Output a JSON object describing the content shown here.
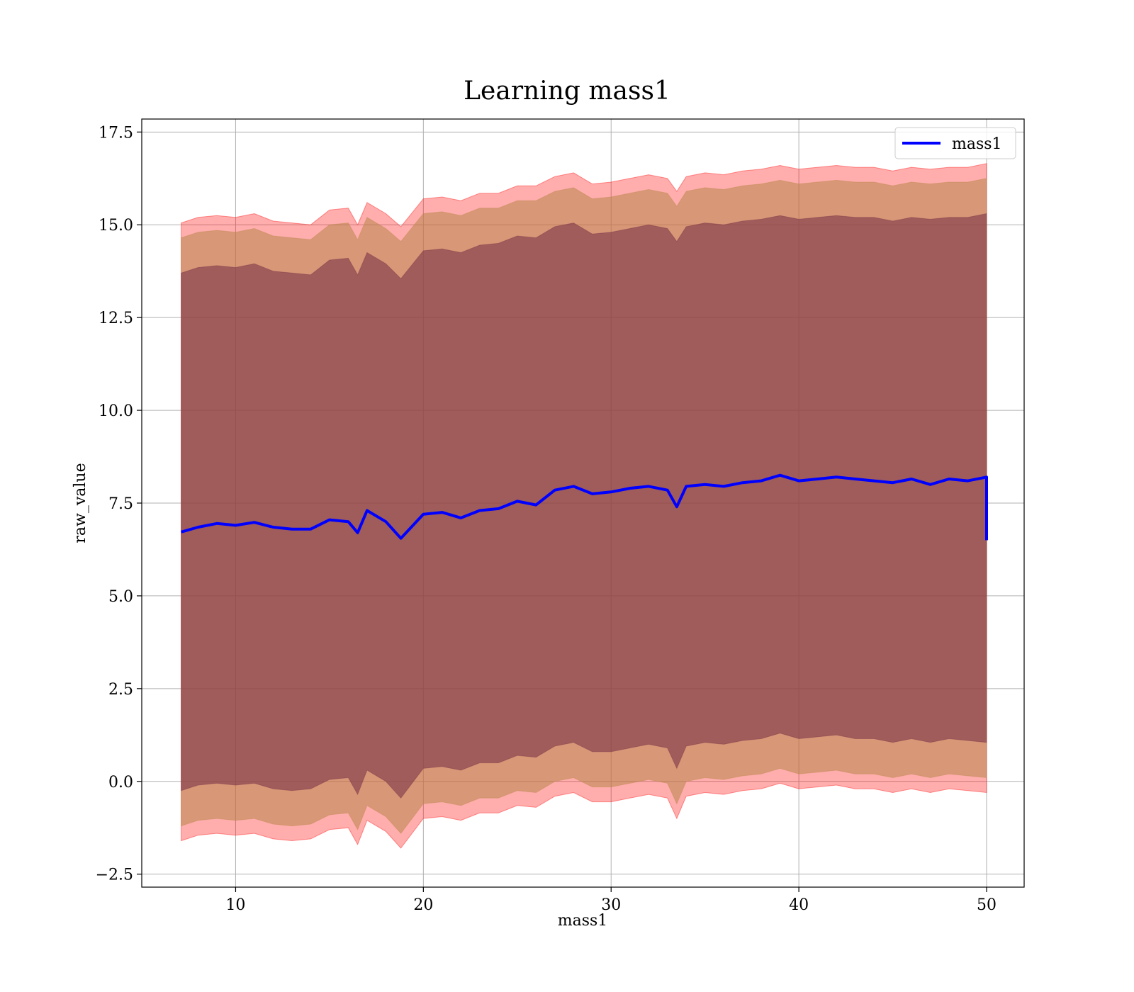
{
  "chart_data": {
    "type": "area",
    "title": "Learning mass1",
    "xlabel": "mass1",
    "ylabel": "raw_value",
    "xlim": [
      5,
      52
    ],
    "ylim": [
      -2.85,
      17.85
    ],
    "xticks": [
      10,
      20,
      30,
      40,
      50
    ],
    "xtick_labels": [
      "10",
      "20",
      "30",
      "40",
      "50"
    ],
    "yticks": [
      -2.5,
      0.0,
      2.5,
      5.0,
      7.5,
      10.0,
      12.5,
      15.0,
      17.5
    ],
    "ytick_labels": [
      "−2.5",
      "0.0",
      "2.5",
      "5.0",
      "7.5",
      "10.0",
      "12.5",
      "15.0",
      "17.5"
    ],
    "grid": true,
    "legend": {
      "position": "top-right",
      "entries": [
        "mass1"
      ]
    },
    "series": [
      {
        "name": "mass1",
        "color": "#0000ff",
        "x": [
          7.1,
          8,
          9,
          10,
          11,
          12,
          13,
          14,
          15,
          16,
          16.5,
          17,
          18,
          18.8,
          20,
          21,
          22,
          23,
          24,
          25,
          26,
          27,
          28,
          29,
          30,
          31,
          32,
          33,
          33.5,
          34,
          35,
          36,
          37,
          38,
          39,
          40,
          41,
          42,
          43,
          44,
          45,
          46,
          47,
          48,
          49,
          50,
          50
        ],
        "y": [
          6.72,
          6.85,
          6.95,
          6.9,
          6.98,
          6.85,
          6.8,
          6.8,
          7.05,
          7.0,
          6.7,
          7.3,
          7.0,
          6.55,
          7.2,
          7.25,
          7.1,
          7.3,
          7.35,
          7.55,
          7.45,
          7.85,
          7.95,
          7.75,
          7.8,
          7.9,
          7.95,
          7.85,
          7.4,
          7.95,
          8.0,
          7.95,
          8.05,
          8.1,
          8.25,
          8.1,
          8.15,
          8.2,
          8.15,
          8.1,
          8.05,
          8.15,
          8.0,
          8.15,
          8.1,
          8.2,
          6.5
        ]
      }
    ],
    "bands": [
      {
        "color": "#ff0000",
        "opacity": 0.32,
        "x": [
          7.1,
          8,
          9,
          10,
          11,
          12,
          13,
          14,
          15,
          16,
          16.5,
          17,
          18,
          18.8,
          20,
          21,
          22,
          23,
          24,
          25,
          26,
          27,
          28,
          29,
          30,
          31,
          32,
          33,
          33.5,
          34,
          35,
          36,
          37,
          38,
          39,
          40,
          41,
          42,
          43,
          44,
          45,
          46,
          47,
          48,
          49,
          50
        ],
        "upper": [
          15.05,
          15.2,
          15.25,
          15.2,
          15.3,
          15.1,
          15.05,
          15.0,
          15.4,
          15.45,
          15.0,
          15.6,
          15.3,
          14.95,
          15.7,
          15.75,
          15.65,
          15.85,
          15.85,
          16.05,
          16.05,
          16.3,
          16.4,
          16.1,
          16.15,
          16.25,
          16.35,
          16.25,
          15.9,
          16.3,
          16.4,
          16.35,
          16.45,
          16.5,
          16.6,
          16.5,
          16.55,
          16.6,
          16.55,
          16.55,
          16.45,
          16.55,
          16.5,
          16.55,
          16.55,
          16.65
        ],
        "lower": [
          -1.6,
          -1.45,
          -1.4,
          -1.45,
          -1.4,
          -1.55,
          -1.6,
          -1.55,
          -1.3,
          -1.25,
          -1.7,
          -1.05,
          -1.35,
          -1.8,
          -1.0,
          -0.95,
          -1.05,
          -0.85,
          -0.85,
          -0.65,
          -0.7,
          -0.4,
          -0.3,
          -0.55,
          -0.55,
          -0.45,
          -0.35,
          -0.45,
          -1.0,
          -0.4,
          -0.3,
          -0.35,
          -0.25,
          -0.2,
          -0.05,
          -0.2,
          -0.15,
          -0.1,
          -0.2,
          -0.2,
          -0.3,
          -0.2,
          -0.3,
          -0.2,
          -0.25,
          -0.3
        ]
      },
      {
        "color": "#b8864a",
        "opacity": 0.55,
        "x": [
          7.1,
          8,
          9,
          10,
          11,
          12,
          13,
          14,
          15,
          16,
          16.5,
          17,
          18,
          18.8,
          20,
          21,
          22,
          23,
          24,
          25,
          26,
          27,
          28,
          29,
          30,
          31,
          32,
          33,
          33.5,
          34,
          35,
          36,
          37,
          38,
          39,
          40,
          41,
          42,
          43,
          44,
          45,
          46,
          47,
          48,
          49,
          50
        ],
        "upper": [
          14.65,
          14.8,
          14.85,
          14.8,
          14.9,
          14.7,
          14.65,
          14.6,
          15.0,
          15.05,
          14.6,
          15.2,
          14.9,
          14.55,
          15.3,
          15.35,
          15.25,
          15.45,
          15.45,
          15.65,
          15.65,
          15.9,
          16.0,
          15.7,
          15.75,
          15.85,
          15.95,
          15.85,
          15.5,
          15.9,
          16.0,
          15.95,
          16.05,
          16.1,
          16.2,
          16.1,
          16.15,
          16.2,
          16.15,
          16.15,
          16.05,
          16.15,
          16.1,
          16.15,
          16.15,
          16.25
        ],
        "lower": [
          -1.2,
          -1.05,
          -1.0,
          -1.05,
          -1.0,
          -1.15,
          -1.2,
          -1.15,
          -0.9,
          -0.85,
          -1.3,
          -0.65,
          -0.95,
          -1.4,
          -0.6,
          -0.55,
          -0.65,
          -0.45,
          -0.45,
          -0.25,
          -0.3,
          0.0,
          0.1,
          -0.15,
          -0.15,
          -0.05,
          0.05,
          -0.05,
          -0.6,
          0.0,
          0.1,
          0.05,
          0.15,
          0.2,
          0.35,
          0.2,
          0.25,
          0.3,
          0.2,
          0.2,
          0.1,
          0.2,
          0.1,
          0.2,
          0.15,
          0.1
        ]
      },
      {
        "color": "#7a3348",
        "opacity": 0.6,
        "x": [
          7.1,
          8,
          9,
          10,
          11,
          12,
          13,
          14,
          15,
          16,
          16.5,
          17,
          18,
          18.8,
          20,
          21,
          22,
          23,
          24,
          25,
          26,
          27,
          28,
          29,
          30,
          31,
          32,
          33,
          33.5,
          34,
          35,
          36,
          37,
          38,
          39,
          40,
          41,
          42,
          43,
          44,
          45,
          46,
          47,
          48,
          49,
          50
        ],
        "upper": [
          13.7,
          13.85,
          13.9,
          13.85,
          13.95,
          13.75,
          13.7,
          13.65,
          14.05,
          14.1,
          13.65,
          14.25,
          13.95,
          13.55,
          14.3,
          14.35,
          14.25,
          14.45,
          14.5,
          14.7,
          14.65,
          14.95,
          15.05,
          14.75,
          14.8,
          14.9,
          15.0,
          14.9,
          14.55,
          14.95,
          15.05,
          15.0,
          15.1,
          15.15,
          15.25,
          15.15,
          15.2,
          15.25,
          15.2,
          15.2,
          15.1,
          15.2,
          15.15,
          15.2,
          15.2,
          15.3
        ],
        "lower": [
          -0.25,
          -0.1,
          -0.05,
          -0.1,
          -0.05,
          -0.2,
          -0.25,
          -0.2,
          0.05,
          0.1,
          -0.35,
          0.3,
          0.0,
          -0.45,
          0.35,
          0.4,
          0.3,
          0.5,
          0.5,
          0.7,
          0.65,
          0.95,
          1.05,
          0.8,
          0.8,
          0.9,
          1.0,
          0.9,
          0.35,
          0.95,
          1.05,
          1.0,
          1.1,
          1.15,
          1.3,
          1.15,
          1.2,
          1.25,
          1.15,
          1.15,
          1.05,
          1.15,
          1.05,
          1.15,
          1.1,
          1.05
        ]
      }
    ]
  }
}
